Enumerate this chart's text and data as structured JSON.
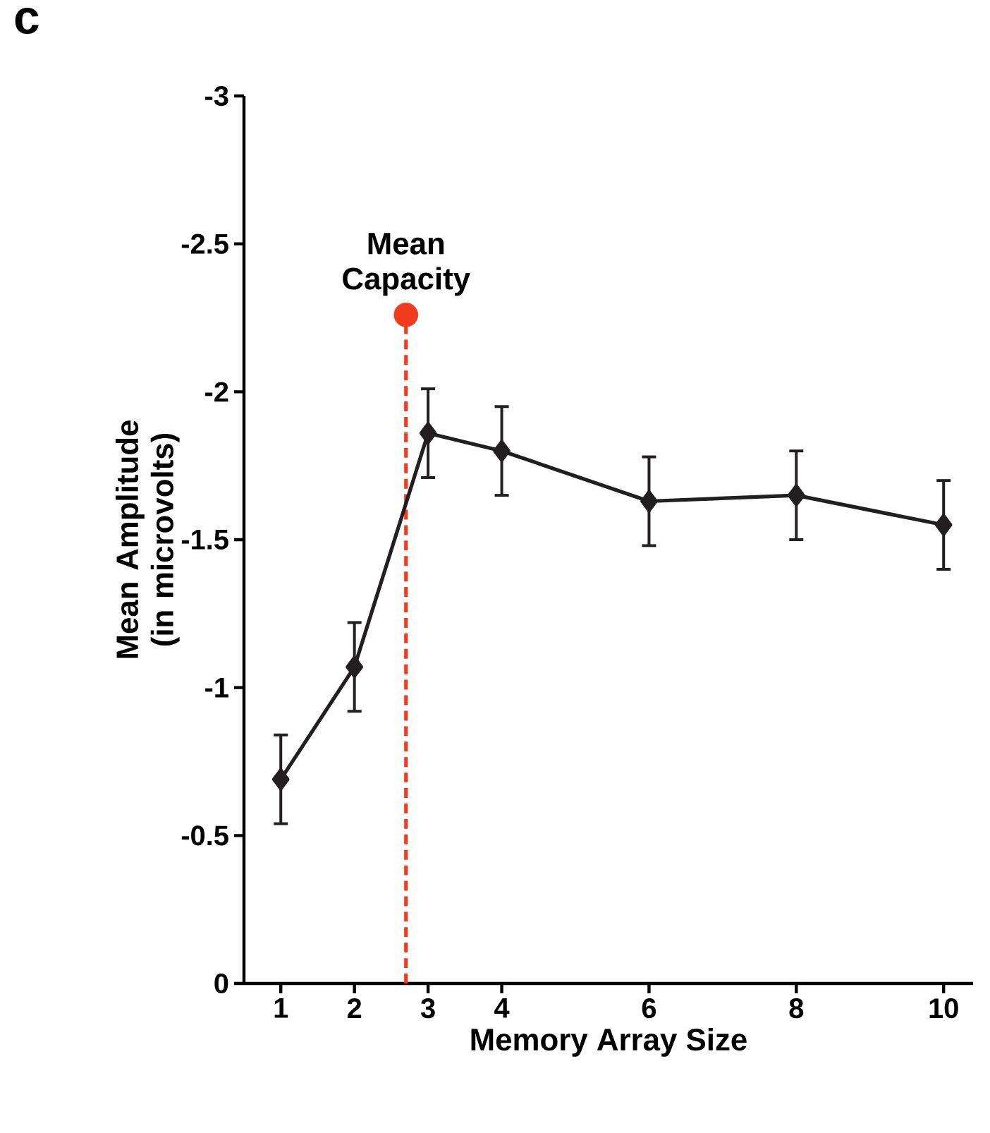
{
  "chart_data": {
    "type": "line",
    "xlabel": "Memory Array Size",
    "ylabel": "Mean Amplitude (in microvolts)",
    "xlim": [
      0.5,
      10.4
    ],
    "xticks": [
      1,
      2,
      3,
      4,
      6,
      8,
      10
    ],
    "ylim": [
      0,
      -3
    ],
    "yticks": [
      -3,
      -2.5,
      -2,
      -1.5,
      -1,
      -0.5,
      0
    ],
    "series": [
      {
        "type": "line",
        "x": [
          2.7,
          2.7
        ],
        "values": [
          0,
          -2.26
        ],
        "color": "#f23a1f",
        "line_style": "dashed",
        "marker": "none"
      },
      {
        "type": "scatter",
        "x": [
          2.7
        ],
        "values": [
          -2.26
        ],
        "color": "#f23a1f",
        "marker": "circle"
      },
      {
        "x": [
          1,
          2,
          3,
          4,
          6,
          8,
          10
        ],
        "values": [
          -0.69,
          -1.07,
          -1.86,
          -1.8,
          -1.63,
          -1.65,
          -1.55
        ],
        "errors": [
          0.15,
          0.15,
          0.15,
          0.15,
          0.15,
          0.15,
          0.15
        ],
        "color": "#231f20",
        "line_style": "solid",
        "marker": "diamond"
      }
    ],
    "annotations": [
      "c",
      {
        "text": "Mean Capacity",
        "x": 2.7,
        "y": -2.26
      }
    ]
  }
}
